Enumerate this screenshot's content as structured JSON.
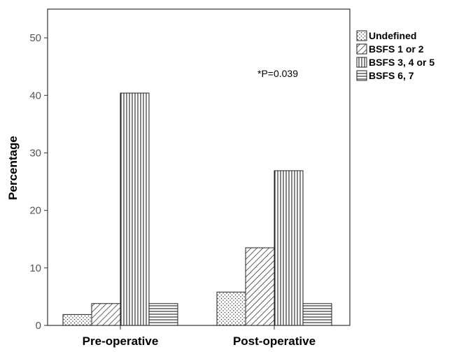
{
  "chart_data": {
    "type": "bar",
    "categories": [
      "Pre-operative",
      "Post-operative"
    ],
    "series": [
      {
        "name": "Undefined",
        "values": [
          1.9,
          5.8
        ],
        "pattern": "dots"
      },
      {
        "name": "BSFS 1 or 2",
        "values": [
          3.8,
          13.5
        ],
        "pattern": "diagonal"
      },
      {
        "name": "BSFS 3, 4 or 5",
        "values": [
          40.4,
          26.9
        ],
        "pattern": "vertical"
      },
      {
        "name": "BSFS 6, 7",
        "values": [
          3.8,
          3.8
        ],
        "pattern": "horizontal"
      }
    ],
    "ylabel": "Percentage",
    "xlabel": "",
    "ylim": [
      0,
      55
    ],
    "yticks": [
      0,
      10,
      20,
      30,
      40,
      50
    ],
    "annotation": "*P=0.039",
    "legend_position": "right",
    "grid": false
  }
}
